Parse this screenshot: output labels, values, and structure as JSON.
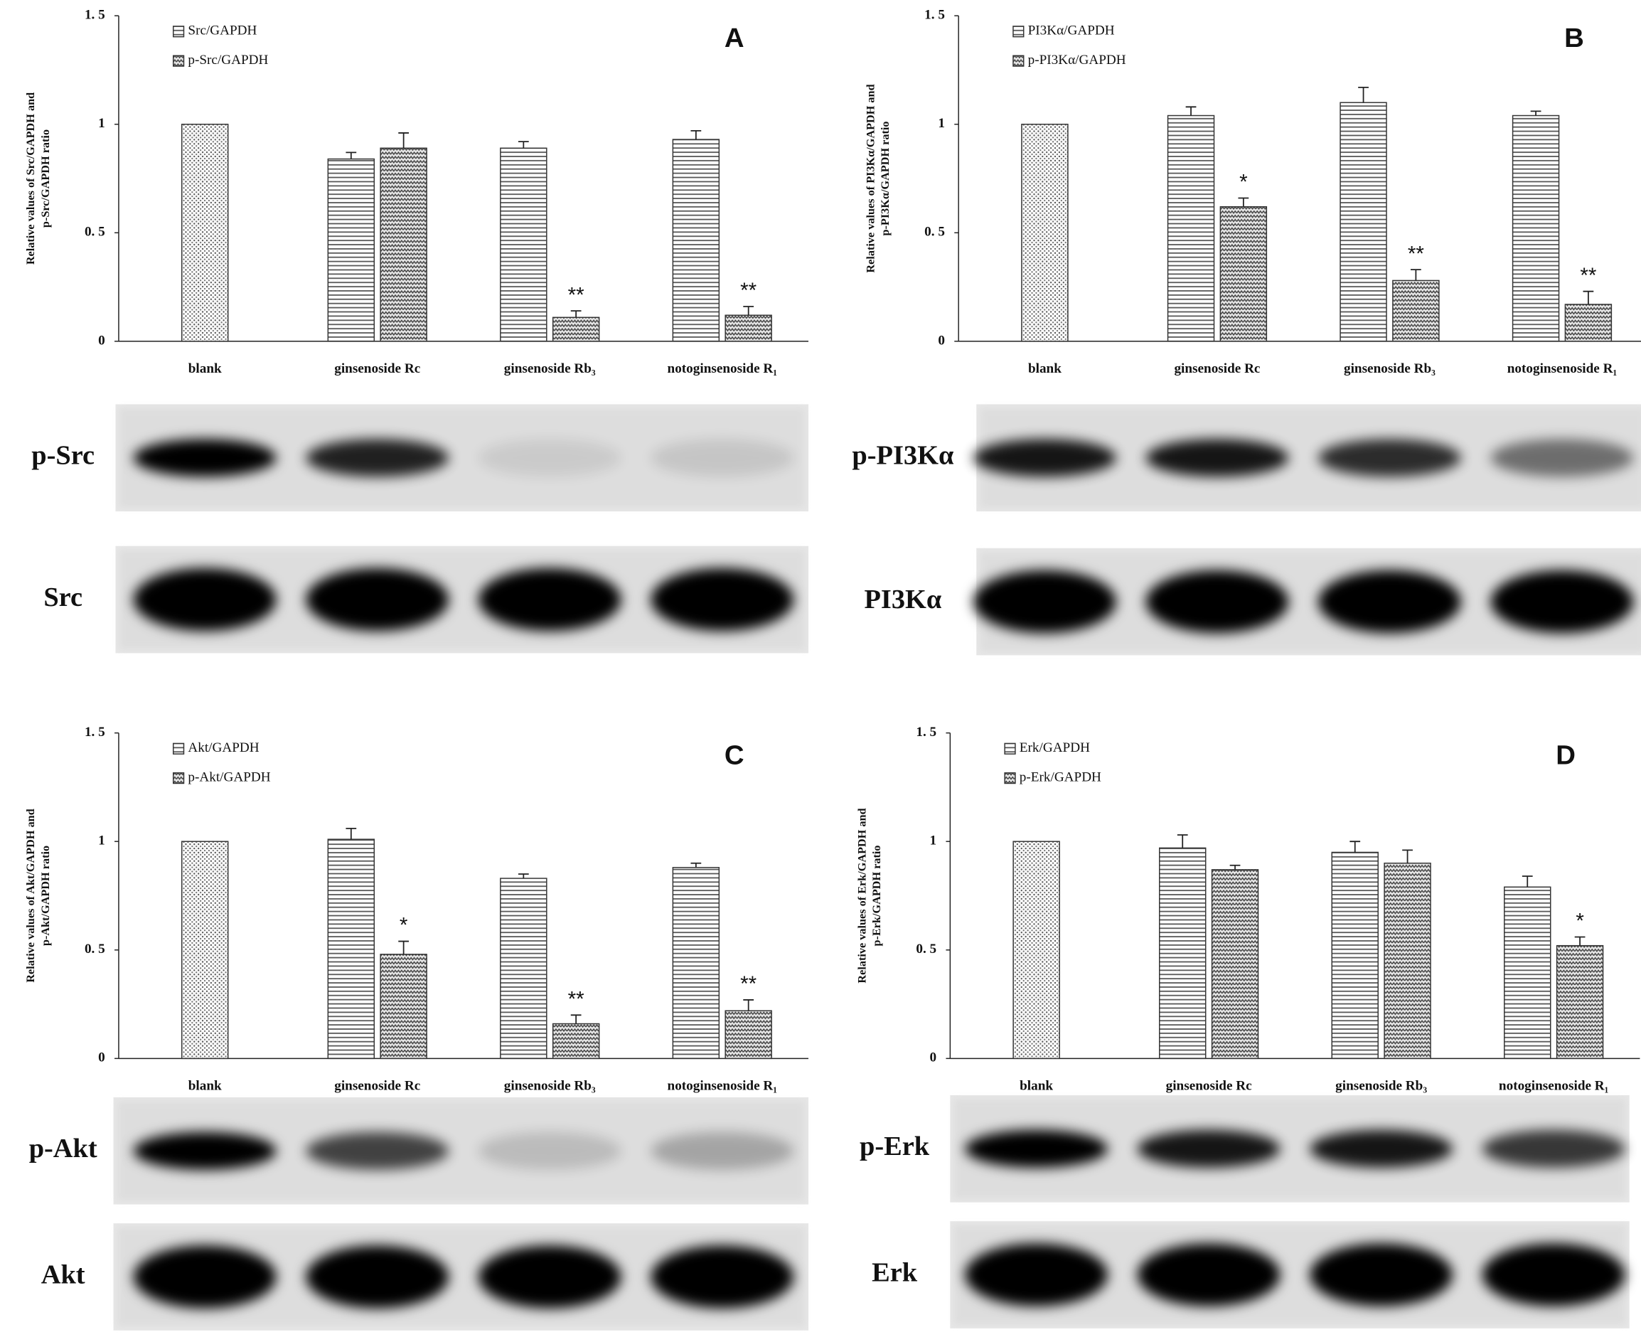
{
  "chart_data": [
    {
      "type": "bar",
      "title": "A",
      "ylabel": [
        "Relative values of Src/GAPDH and",
        "p-Src/GAPDH ratio"
      ],
      "categories": [
        "blank",
        "ginsenoside Rc",
        "ginsenoside Rb₃",
        "notoginsenoside R₁"
      ],
      "ylim": [
        0,
        1.5
      ],
      "yticks": [
        0,
        {
          "value": 0.5,
          "label": "0. 5"
        },
        1,
        {
          "value": 1.5,
          "label": "1. 5"
        }
      ],
      "series": [
        {
          "name": "Src/GAPDH",
          "values": [
            1.0,
            0.84,
            0.89,
            0.93
          ],
          "errors": [
            null,
            0.03,
            0.03,
            0.04
          ]
        },
        {
          "name": "p-Src/GAPDH",
          "values": [
            null,
            0.89,
            0.11,
            0.12
          ],
          "errors": [
            null,
            0.07,
            0.03,
            0.04
          ],
          "annotations": [
            null,
            null,
            "**",
            "**"
          ]
        }
      ]
    },
    {
      "type": "bar",
      "title": "B",
      "ylabel": [
        "Relative values of PI3Kα/GAPDH and",
        "p-PI3Kα/GAPDH ratio"
      ],
      "categories": [
        "blank",
        "ginsenoside Rc",
        "ginsenoside Rb₃",
        "notoginsenoside R₁"
      ],
      "ylim": [
        0,
        1.5
      ],
      "yticks": [
        0,
        {
          "value": 0.5,
          "label": "0. 5"
        },
        1,
        {
          "value": 1.5,
          "label": "1. 5"
        }
      ],
      "series": [
        {
          "name": "PI3Kα/GAPDH",
          "values": [
            1.0,
            1.04,
            1.1,
            1.04
          ],
          "errors": [
            null,
            0.04,
            0.07,
            0.02
          ]
        },
        {
          "name": "p-PI3Kα/GAPDH",
          "values": [
            null,
            0.62,
            0.28,
            0.17
          ],
          "errors": [
            null,
            0.04,
            0.05,
            0.06
          ],
          "annotations": [
            null,
            "*",
            "**",
            "**"
          ]
        }
      ]
    },
    {
      "type": "bar",
      "title": "C",
      "ylabel": [
        "Relative values of Akt/GAPDH and",
        "p-Akt/GAPDH ratio"
      ],
      "categories": [
        "blank",
        "ginsenoside Rc",
        "ginsenoside Rb₃",
        "notoginsenoside R₁"
      ],
      "ylim": [
        0,
        1.5
      ],
      "yticks": [
        0,
        {
          "value": 0.5,
          "label": "0. 5"
        },
        1,
        {
          "value": 1.5,
          "label": "1. 5"
        }
      ],
      "series": [
        {
          "name": "Akt/GAPDH",
          "values": [
            1.0,
            1.01,
            0.83,
            0.88
          ],
          "errors": [
            null,
            0.05,
            0.02,
            0.02
          ]
        },
        {
          "name": "p-Akt/GAPDH",
          "values": [
            null,
            0.48,
            0.16,
            0.22
          ],
          "errors": [
            null,
            0.06,
            0.04,
            0.05
          ],
          "annotations": [
            null,
            "*",
            "**",
            "**"
          ]
        }
      ]
    },
    {
      "type": "bar",
      "title": "D",
      "ylabel": [
        "Relative values of Erk/GAPDH and",
        "p-Erk/GAPDH ratio"
      ],
      "categories": [
        "blank",
        "ginsenoside Rc",
        "ginsenoside Rb₃",
        "notoginsenoside R₁"
      ],
      "ylim": [
        0,
        1.5
      ],
      "yticks": [
        0,
        {
          "value": 0.5,
          "label": "0. 5"
        },
        1,
        {
          "value": 1.5,
          "label": "1. 5"
        }
      ],
      "series": [
        {
          "name": "Erk/GAPDH",
          "values": [
            1.0,
            0.97,
            0.95,
            0.79
          ],
          "errors": [
            null,
            0.06,
            0.05,
            0.05
          ]
        },
        {
          "name": "p-Erk/GAPDH",
          "values": [
            null,
            0.87,
            0.9,
            0.52
          ],
          "errors": [
            null,
            0.02,
            0.06,
            0.04
          ],
          "annotations": [
            null,
            null,
            null,
            "*"
          ]
        }
      ]
    }
  ],
  "blots": [
    {
      "rows": [
        "p-Src",
        "Src"
      ]
    },
    {
      "rows": [
        "p-PI3Kα",
        "PI3Kα"
      ]
    },
    {
      "rows": [
        "p-Akt",
        "Akt"
      ]
    },
    {
      "rows": [
        "p-Erk",
        "Erk"
      ]
    }
  ]
}
